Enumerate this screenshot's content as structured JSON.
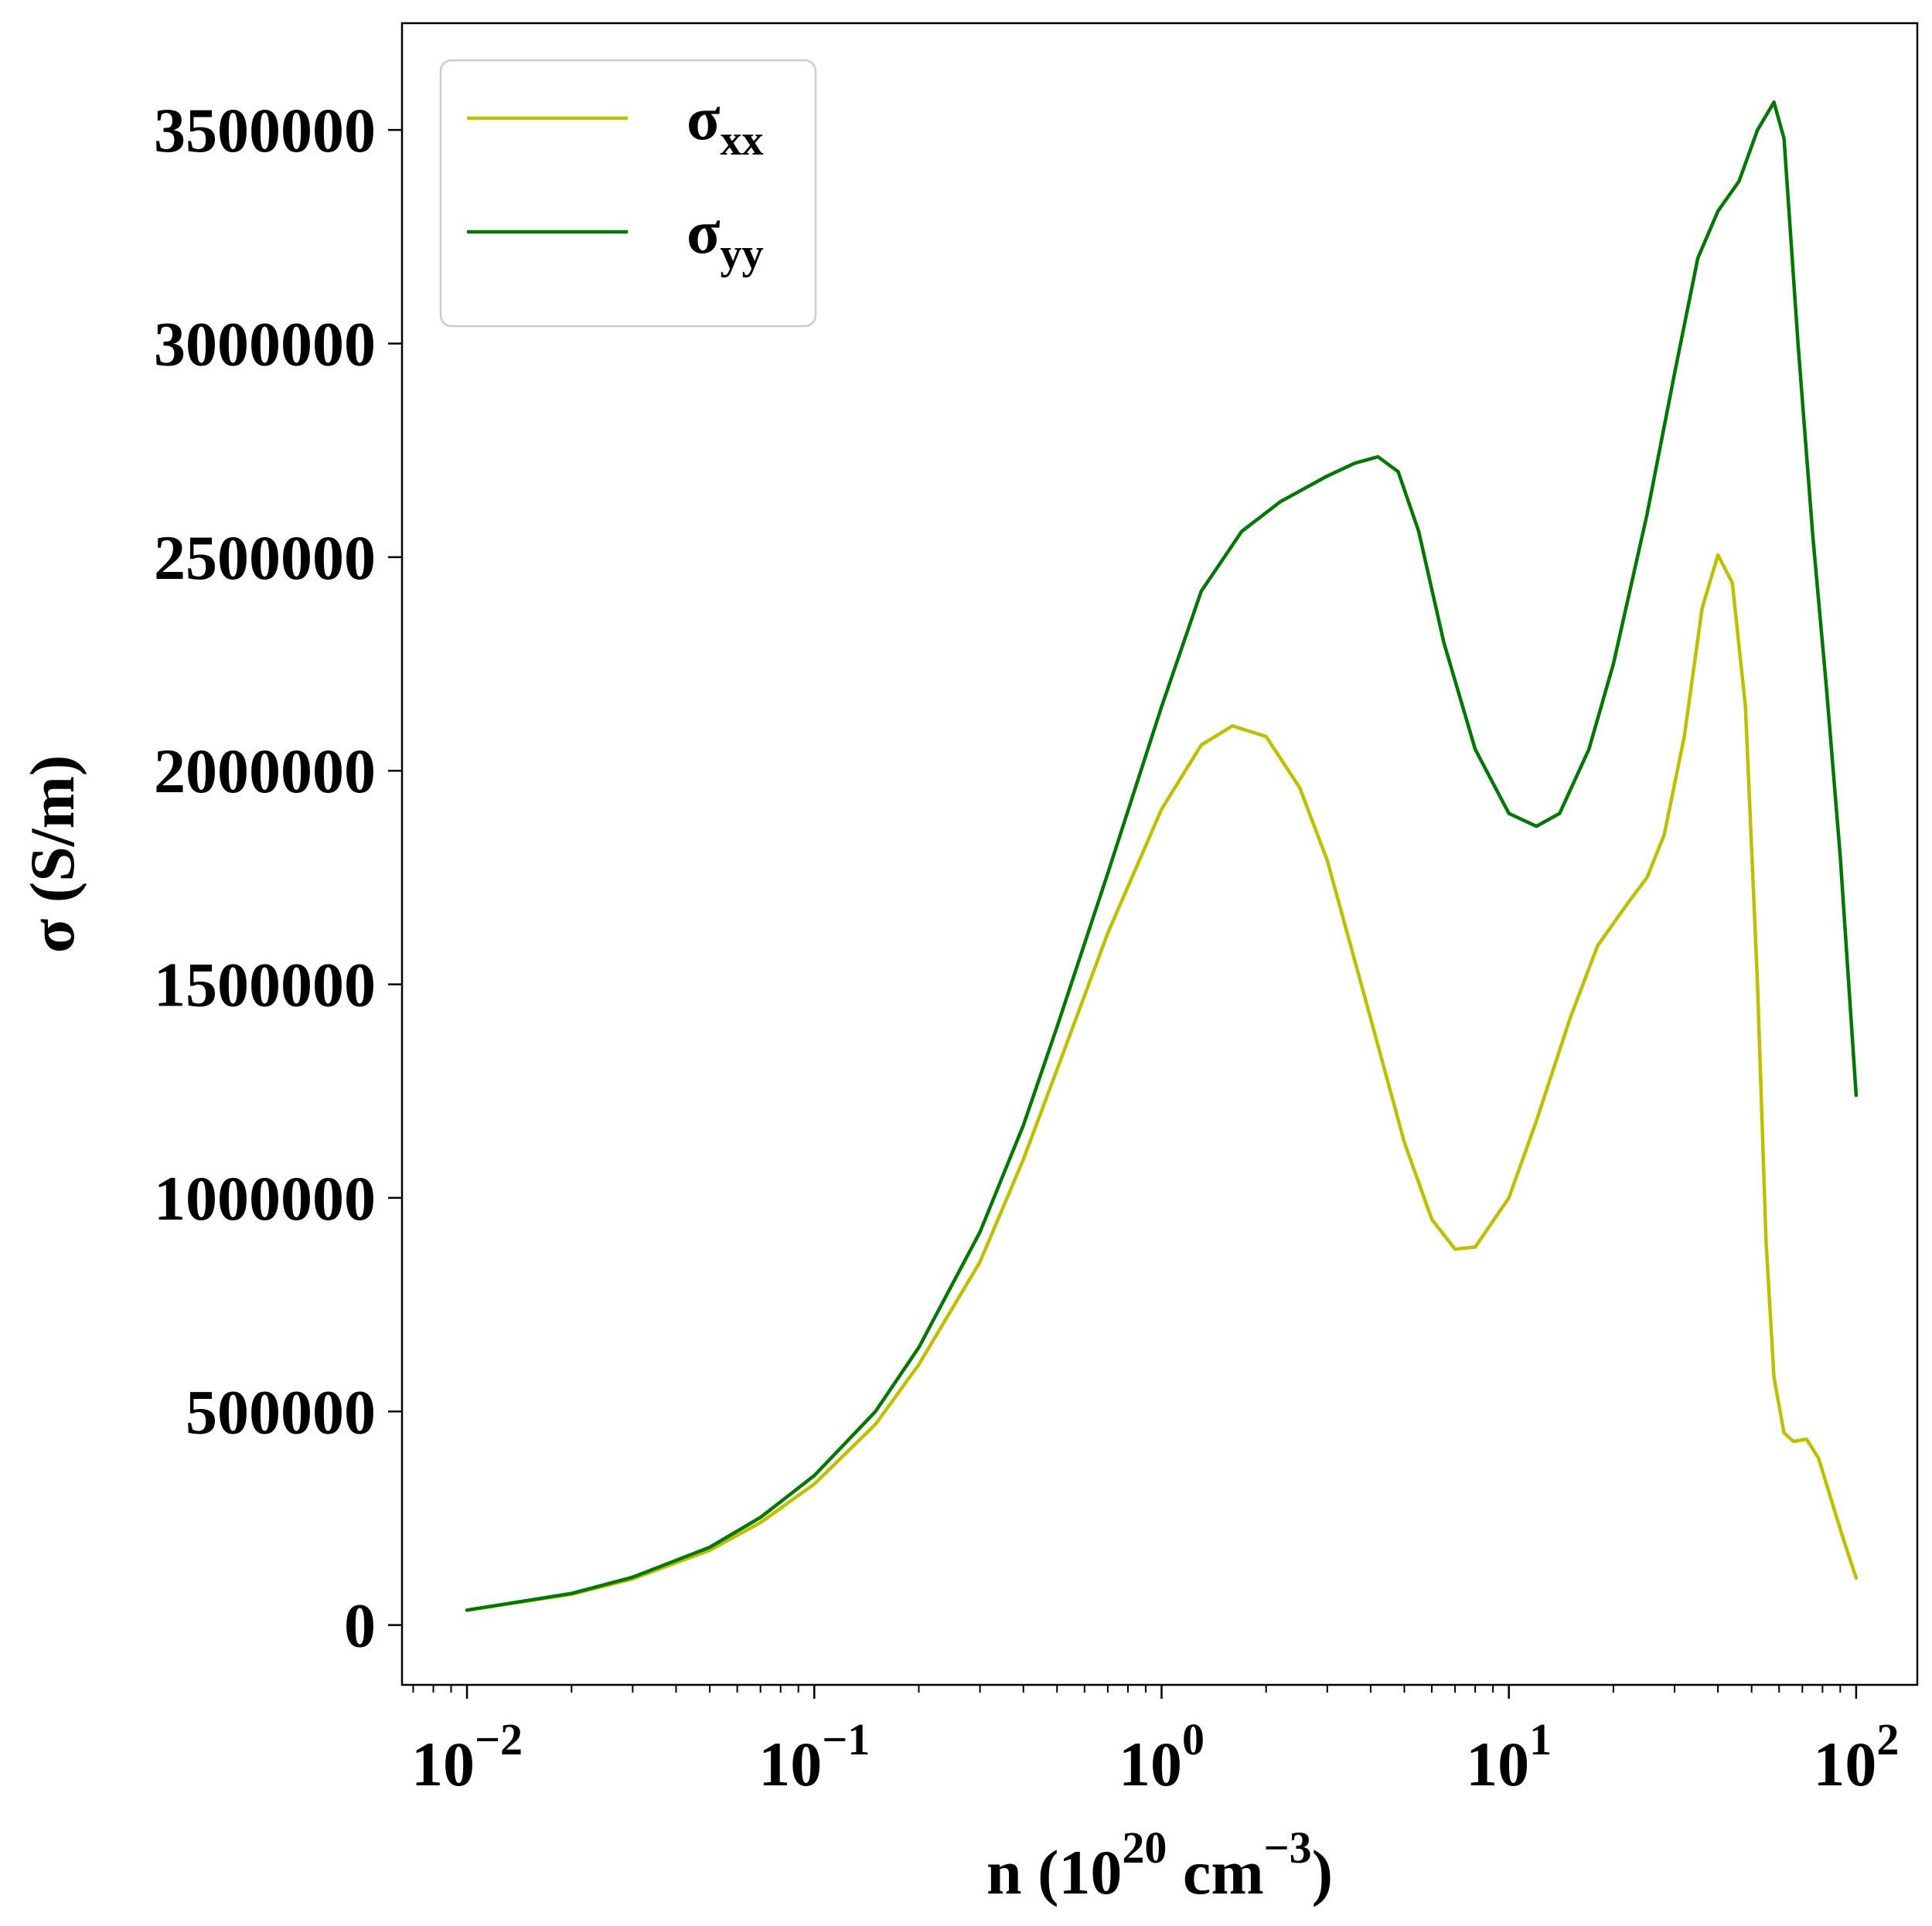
{
  "chart_data": {
    "type": "line",
    "xlabel": {
      "main": "n (10",
      "sup1": "20",
      "mid": " cm",
      "sup2": "−3",
      "end": ")"
    },
    "ylabel": "σ (S/m)",
    "xscale": "log",
    "xlim": [
      0.0065,
      150
    ],
    "ylim": [
      -140000,
      3750000
    ],
    "x_ticks": [
      {
        "value": 0.01,
        "base": "10",
        "exp": "−2"
      },
      {
        "value": 0.1,
        "base": "10",
        "exp": "−1"
      },
      {
        "value": 1,
        "base": "10",
        "exp": "0"
      },
      {
        "value": 10,
        "base": "10",
        "exp": "1"
      },
      {
        "value": 100,
        "base": "10",
        "exp": "2"
      }
    ],
    "y_ticks": [
      {
        "value": 0,
        "label": "0"
      },
      {
        "value": 500000,
        "label": "500000"
      },
      {
        "value": 1000000,
        "label": "1000000"
      },
      {
        "value": 1500000,
        "label": "1500000"
      },
      {
        "value": 2000000,
        "label": "2000000"
      },
      {
        "value": 2500000,
        "label": "2500000"
      },
      {
        "value": 3000000,
        "label": "3000000"
      },
      {
        "value": 3500000,
        "label": "3500000"
      }
    ],
    "grid": false,
    "legend_position": "upper-left",
    "series": [
      {
        "name": "σ",
        "subscript": "xx",
        "color": "#bfbf00",
        "points": [
          [
            0.01,
            35000
          ],
          [
            0.02,
            72000
          ],
          [
            0.03,
            108000
          ],
          [
            0.05,
            175000
          ],
          [
            0.07,
            240000
          ],
          [
            0.1,
            330000
          ],
          [
            0.15,
            470000
          ],
          [
            0.2,
            610000
          ],
          [
            0.3,
            850000
          ],
          [
            0.4,
            1090000
          ],
          [
            0.5,
            1300000
          ],
          [
            0.7,
            1620000
          ],
          [
            1.0,
            1910000
          ],
          [
            1.3,
            2060000
          ],
          [
            1.6,
            2105000
          ],
          [
            2.0,
            2080000
          ],
          [
            2.5,
            1960000
          ],
          [
            3.0,
            1790000
          ],
          [
            4.0,
            1420000
          ],
          [
            5.0,
            1130000
          ],
          [
            6.0,
            950000
          ],
          [
            7.0,
            880000
          ],
          [
            8.0,
            885000
          ],
          [
            10.0,
            1000000
          ],
          [
            12.0,
            1180000
          ],
          [
            15.0,
            1420000
          ],
          [
            18.0,
            1590000
          ],
          [
            22.0,
            1690000
          ],
          [
            25.0,
            1750000
          ],
          [
            28.0,
            1850000
          ],
          [
            32.0,
            2080000
          ],
          [
            36.0,
            2380000
          ],
          [
            40.0,
            2505000
          ],
          [
            44.0,
            2440000
          ],
          [
            48.0,
            2150000
          ],
          [
            52.0,
            1500000
          ],
          [
            55.0,
            900000
          ],
          [
            58.0,
            580000
          ],
          [
            62.0,
            450000
          ],
          [
            66.0,
            430000
          ],
          [
            72.0,
            435000
          ],
          [
            78.0,
            390000
          ],
          [
            85.0,
            290000
          ],
          [
            92.0,
            200000
          ],
          [
            100.0,
            110000
          ]
        ]
      },
      {
        "name": "σ",
        "subscript": "yy",
        "color": "#007800",
        "points": [
          [
            0.01,
            35000
          ],
          [
            0.02,
            74000
          ],
          [
            0.03,
            112000
          ],
          [
            0.05,
            182000
          ],
          [
            0.07,
            252000
          ],
          [
            0.1,
            350000
          ],
          [
            0.15,
            500000
          ],
          [
            0.2,
            650000
          ],
          [
            0.3,
            920000
          ],
          [
            0.4,
            1170000
          ],
          [
            0.5,
            1400000
          ],
          [
            0.7,
            1760000
          ],
          [
            1.0,
            2150000
          ],
          [
            1.3,
            2420000
          ],
          [
            1.7,
            2560000
          ],
          [
            2.2,
            2630000
          ],
          [
            3.0,
            2690000
          ],
          [
            3.6,
            2720000
          ],
          [
            4.2,
            2735000
          ],
          [
            4.8,
            2700000
          ],
          [
            5.5,
            2560000
          ],
          [
            6.5,
            2300000
          ],
          [
            8.0,
            2050000
          ],
          [
            10.0,
            1900000
          ],
          [
            12.0,
            1870000
          ],
          [
            14.0,
            1900000
          ],
          [
            17.0,
            2050000
          ],
          [
            20.0,
            2250000
          ],
          [
            25.0,
            2600000
          ],
          [
            30.0,
            2930000
          ],
          [
            35.0,
            3200000
          ],
          [
            40.0,
            3310000
          ],
          [
            46.0,
            3380000
          ],
          [
            52.0,
            3500000
          ],
          [
            58.0,
            3565000
          ],
          [
            62.0,
            3480000
          ],
          [
            68.0,
            3000000
          ],
          [
            75.0,
            2550000
          ],
          [
            82.0,
            2200000
          ],
          [
            90.0,
            1800000
          ],
          [
            100.0,
            1240000
          ]
        ]
      }
    ]
  }
}
